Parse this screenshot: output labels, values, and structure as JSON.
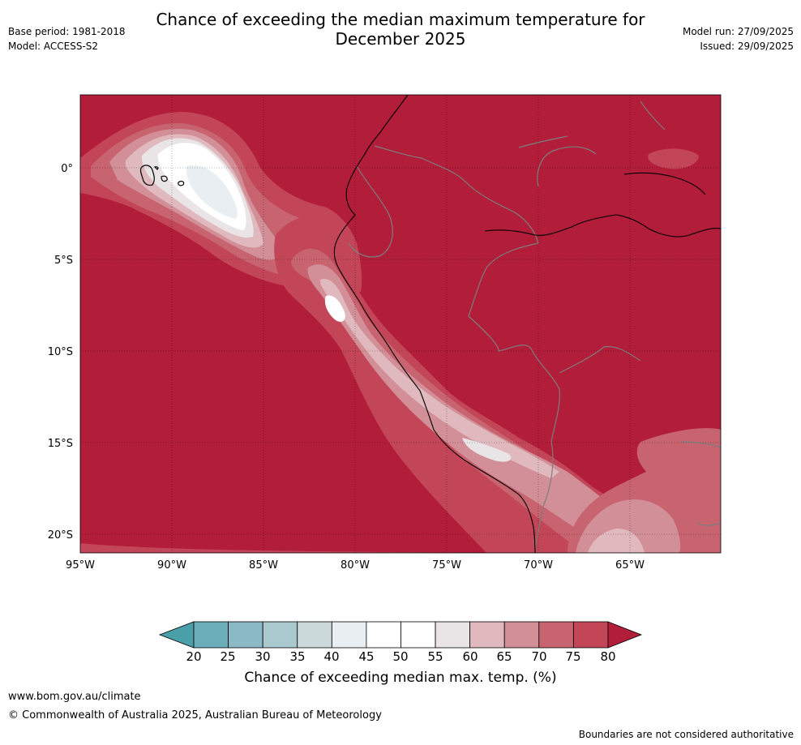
{
  "title_line1": "Chance of exceeding the median maximum temperature for",
  "title_line2": "December 2025",
  "meta_left": {
    "base_period": "Base period: 1981-2018",
    "model": "Model: ACCESS-S2"
  },
  "meta_right": {
    "model_run": "Model run: 27/09/2025",
    "issued": "Issued: 29/09/2025"
  },
  "lat_labels": [
    "0°",
    "5°S",
    "10°S",
    "15°S",
    "20°S"
  ],
  "lon_labels": [
    "95°W",
    "90°W",
    "85°W",
    "80°W",
    "75°W",
    "70°W",
    "65°W"
  ],
  "colorbar": {
    "ticks": [
      "20",
      "25",
      "30",
      "35",
      "40",
      "45",
      "50",
      "55",
      "60",
      "65",
      "70",
      "75",
      "80"
    ],
    "colors": [
      "#4a9fa9",
      "#6aaeb9",
      "#8bbac6",
      "#aac9ce",
      "#cbd9db",
      "#e8eef1",
      "#ffffff",
      "#ffffff",
      "#e9e5e6",
      "#e0b9be",
      "#d38f98",
      "#c76470",
      "#c24657",
      "#b21d39"
    ],
    "label": "Chance of exceeding median max. temp. (%)"
  },
  "footer": {
    "url": "www.bom.gov.au/climate",
    "copyright": "© Commonwealth of Australia 2025, Australian Bureau of Meteorology",
    "note": "Boundaries are not considered authoritative"
  }
}
